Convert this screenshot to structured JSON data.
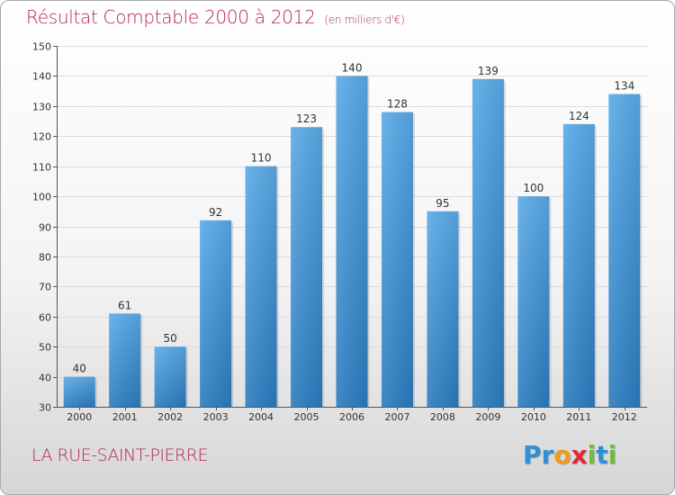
{
  "header": {
    "title": "Résultat Comptable 2000 à 2012",
    "subtitle": "(en milliers d'€)"
  },
  "footer": {
    "city": "LA RUE-SAINT-PIERRE",
    "logo_letters": [
      {
        "char": "P",
        "color": "#2f8fd8"
      },
      {
        "char": "r",
        "color": "#2f8fd8"
      },
      {
        "char": "o",
        "color": "#f39a1a"
      },
      {
        "char": "x",
        "color": "#e32636"
      },
      {
        "char": "i",
        "color": "#6cbf3c"
      },
      {
        "char": "t",
        "color": "#2f8fd8"
      },
      {
        "char": "i",
        "color": "#6cbf3c"
      }
    ]
  },
  "chart_data": {
    "type": "bar",
    "categories": [
      "2000",
      "2001",
      "2002",
      "2003",
      "2004",
      "2005",
      "2006",
      "2007",
      "2008",
      "2009",
      "2010",
      "2011",
      "2012"
    ],
    "values": [
      40,
      61,
      50,
      92,
      110,
      123,
      140,
      128,
      95,
      139,
      100,
      124,
      134
    ],
    "ylim": [
      30,
      150
    ],
    "yticks": [
      30,
      40,
      50,
      60,
      70,
      80,
      90,
      100,
      110,
      120,
      130,
      140,
      150
    ],
    "grid": true,
    "bar_color_top": "#5aaae8",
    "bar_color_bottom": "#2a7cc0"
  }
}
